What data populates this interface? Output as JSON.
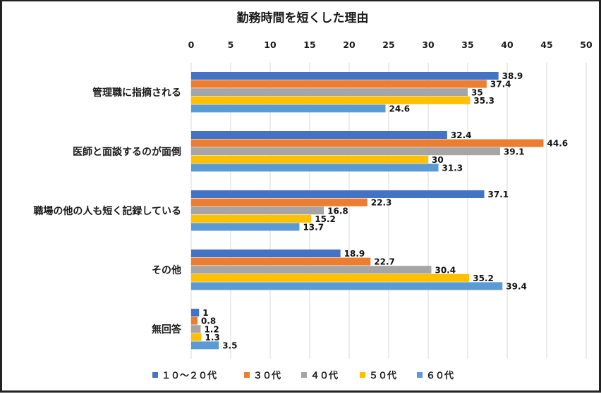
{
  "chart_data": {
    "type": "bar",
    "orientation": "horizontal",
    "title": "勤務時間を短くした理由",
    "xlabel": "",
    "ylabel": "",
    "xlim": [
      0,
      50
    ],
    "x_ticks": [
      0,
      5,
      10,
      15,
      20,
      25,
      30,
      35,
      40,
      45,
      50
    ],
    "x_tick_labels": [
      "0",
      "5",
      "10",
      "15",
      "20",
      "25",
      "30",
      "35",
      "40",
      "45",
      "50"
    ],
    "x_axis_position": "top",
    "grid": true,
    "legend_position": "bottom",
    "categories": [
      "管理職に指摘される",
      "医師と面談するのが面倒",
      "職場の他の人も短く記録している",
      "その他",
      "無回答"
    ],
    "series": [
      {
        "name": "１０～２０代",
        "color": "#4472C4",
        "values": [
          38.9,
          32.4,
          37.1,
          18.9,
          1
        ]
      },
      {
        "name": "３０代",
        "color": "#ED7D31",
        "values": [
          37.4,
          44.6,
          22.3,
          22.7,
          0.8
        ]
      },
      {
        "name": "４０代",
        "color": "#A5A5A5",
        "values": [
          35,
          39.1,
          16.8,
          30.4,
          1.2
        ]
      },
      {
        "name": "５０代",
        "color": "#FFC000",
        "values": [
          35.3,
          30,
          15.2,
          35.2,
          1.3
        ]
      },
      {
        "name": "６０代",
        "color": "#5B9BD5",
        "values": [
          24.6,
          31.3,
          13.7,
          39.4,
          3.5
        ]
      }
    ]
  }
}
